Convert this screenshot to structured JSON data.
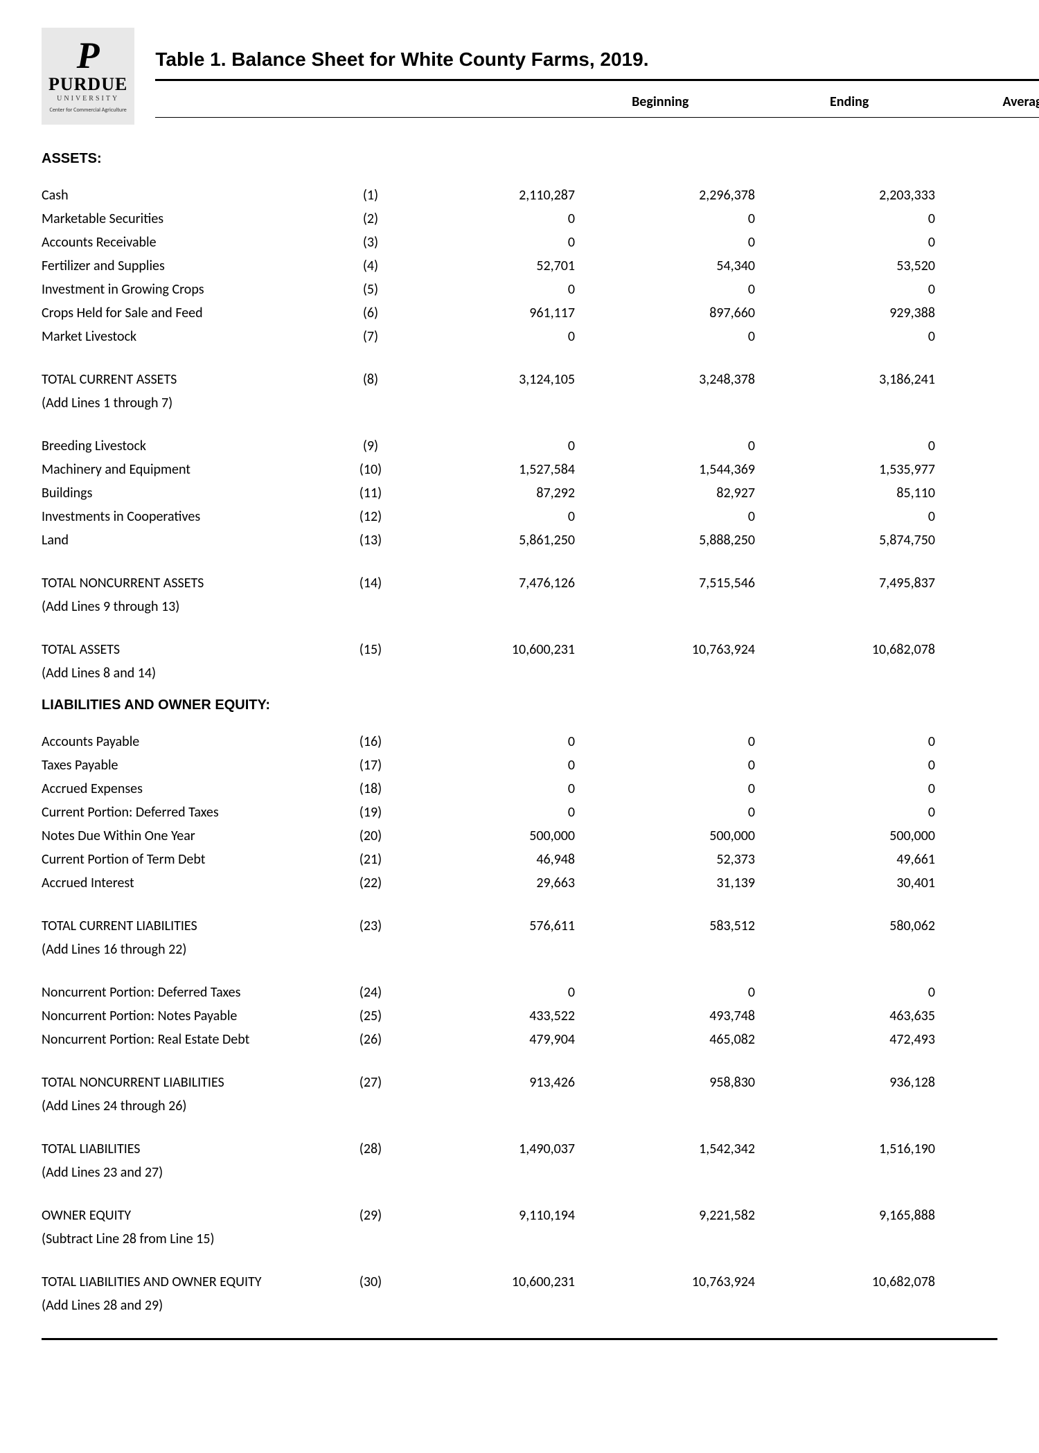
{
  "logo": {
    "letter": "P",
    "name": "PURDUE",
    "sub": "UNIVERSITY",
    "center": "Center for Commercial Agriculture"
  },
  "title": "Table 1.  Balance Sheet for White County Farms, 2019.",
  "headers": {
    "c1": "Beginning",
    "c2": "Ending",
    "c3": "Average"
  },
  "sections": {
    "assets": "ASSETS:",
    "liab": "LIABILITIES AND OWNER EQUITY:"
  },
  "rows": [
    {
      "label": "Cash",
      "n": "(1)",
      "b": "2,110,287",
      "e": "2,296,378",
      "a": "2,203,333"
    },
    {
      "label": "Marketable Securities",
      "n": "(2)",
      "b": "0",
      "e": "0",
      "a": "0"
    },
    {
      "label": "Accounts Receivable",
      "n": "(3)",
      "b": "0",
      "e": "0",
      "a": "0"
    },
    {
      "label": "Fertilizer and Supplies",
      "n": "(4)",
      "b": "52,701",
      "e": "54,340",
      "a": "53,520"
    },
    {
      "label": "Investment in Growing Crops",
      "n": "(5)",
      "b": "0",
      "e": "0",
      "a": "0"
    },
    {
      "label": "Crops Held for Sale and Feed",
      "n": "(6)",
      "b": "961,117",
      "e": "897,660",
      "a": "929,388"
    },
    {
      "label": "Market Livestock",
      "n": "(7)",
      "b": "0",
      "e": "0",
      "a": "0"
    },
    {
      "label": "TOTAL CURRENT ASSETS",
      "n": "(8)",
      "b": "3,124,105",
      "e": "3,248,378",
      "a": "3,186,241",
      "note": "(Add Lines 1 through 7)"
    },
    {
      "label": "Breeding Livestock",
      "n": "(9)",
      "b": "0",
      "e": "0",
      "a": "0"
    },
    {
      "label": "Machinery and Equipment",
      "n": "(10)",
      "b": "1,527,584",
      "e": "1,544,369",
      "a": "1,535,977"
    },
    {
      "label": "Buildings",
      "n": "(11)",
      "b": "87,292",
      "e": "82,927",
      "a": "85,110"
    },
    {
      "label": "Investments in Cooperatives",
      "n": "(12)",
      "b": "0",
      "e": "0",
      "a": "0"
    },
    {
      "label": "Land",
      "n": "(13)",
      "b": "5,861,250",
      "e": "5,888,250",
      "a": "5,874,750"
    },
    {
      "label": "TOTAL NONCURRENT ASSETS",
      "n": "(14)",
      "b": "7,476,126",
      "e": "7,515,546",
      "a": "7,495,837",
      "note": "(Add Lines 9 through 13)"
    },
    {
      "label": "TOTAL ASSETS",
      "n": "(15)",
      "b": "10,600,231",
      "e": "10,763,924",
      "a": "10,682,078",
      "note": "(Add Lines 8 and 14)"
    },
    {
      "label": "Accounts Payable",
      "n": "(16)",
      "b": "0",
      "e": "0",
      "a": "0"
    },
    {
      "label": "Taxes Payable",
      "n": "(17)",
      "b": "0",
      "e": "0",
      "a": "0"
    },
    {
      "label": "Accrued Expenses",
      "n": "(18)",
      "b": "0",
      "e": "0",
      "a": "0"
    },
    {
      "label": "Current Portion: Deferred Taxes",
      "n": "(19)",
      "b": "0",
      "e": "0",
      "a": "0"
    },
    {
      "label": "Notes Due Within One Year",
      "n": "(20)",
      "b": "500,000",
      "e": "500,000",
      "a": "500,000"
    },
    {
      "label": "Current Portion of Term Debt",
      "n": "(21)",
      "b": "46,948",
      "e": "52,373",
      "a": "49,661"
    },
    {
      "label": "Accrued Interest",
      "n": "(22)",
      "b": "29,663",
      "e": "31,139",
      "a": "30,401"
    },
    {
      "label": "TOTAL CURRENT LIABILITIES",
      "n": "(23)",
      "b": "576,611",
      "e": "583,512",
      "a": "580,062",
      "note": "(Add Lines 16 through 22)"
    },
    {
      "label": "Noncurrent Portion: Deferred Taxes",
      "n": "(24)",
      "b": "0",
      "e": "0",
      "a": "0"
    },
    {
      "label": "Noncurrent Portion: Notes Payable",
      "n": "(25)",
      "b": "433,522",
      "e": "493,748",
      "a": "463,635"
    },
    {
      "label": "Noncurrent Portion: Real Estate Debt",
      "n": "(26)",
      "b": "479,904",
      "e": "465,082",
      "a": "472,493"
    },
    {
      "label": "TOTAL NONCURRENT LIABILITIES",
      "n": "(27)",
      "b": "913,426",
      "e": "958,830",
      "a": "936,128",
      "note": "(Add Lines 24 through 26)"
    },
    {
      "label": "TOTAL LIABILITIES",
      "n": "(28)",
      "b": "1,490,037",
      "e": "1,542,342",
      "a": "1,516,190",
      "note": "(Add Lines 23 and 27)"
    },
    {
      "label": "OWNER EQUITY",
      "n": "(29)",
      "b": "9,110,194",
      "e": "9,221,582",
      "a": "9,165,888",
      "note": "(Subtract Line 28 from Line 15)"
    },
    {
      "label": "TOTAL LIABILITIES AND OWNER EQUITY",
      "n": "(30)",
      "b": "10,600,231",
      "e": "10,763,924",
      "a": "10,682,078",
      "note": "(Add Lines 28 and 29)"
    }
  ],
  "layout": {
    "groups": [
      {
        "type": "section",
        "key": "assets"
      },
      {
        "type": "rows",
        "from": 0,
        "to": 6
      },
      {
        "type": "spacer"
      },
      {
        "type": "rowWithNote",
        "idx": 7
      },
      {
        "type": "spacer"
      },
      {
        "type": "rows",
        "from": 8,
        "to": 12
      },
      {
        "type": "spacer"
      },
      {
        "type": "rowWithNote",
        "idx": 13
      },
      {
        "type": "spacer"
      },
      {
        "type": "rowWithNote",
        "idx": 14
      },
      {
        "type": "section",
        "key": "liab"
      },
      {
        "type": "rows",
        "from": 15,
        "to": 21
      },
      {
        "type": "spacer"
      },
      {
        "type": "rowWithNote",
        "idx": 22
      },
      {
        "type": "spacer"
      },
      {
        "type": "rows",
        "from": 23,
        "to": 25
      },
      {
        "type": "spacer"
      },
      {
        "type": "rowWithNote",
        "idx": 26
      },
      {
        "type": "spacer"
      },
      {
        "type": "rowWithNote",
        "idx": 27
      },
      {
        "type": "spacer"
      },
      {
        "type": "rowWithNote",
        "idx": 28
      },
      {
        "type": "spacer"
      },
      {
        "type": "rowWithNote",
        "idx": 29
      }
    ]
  }
}
